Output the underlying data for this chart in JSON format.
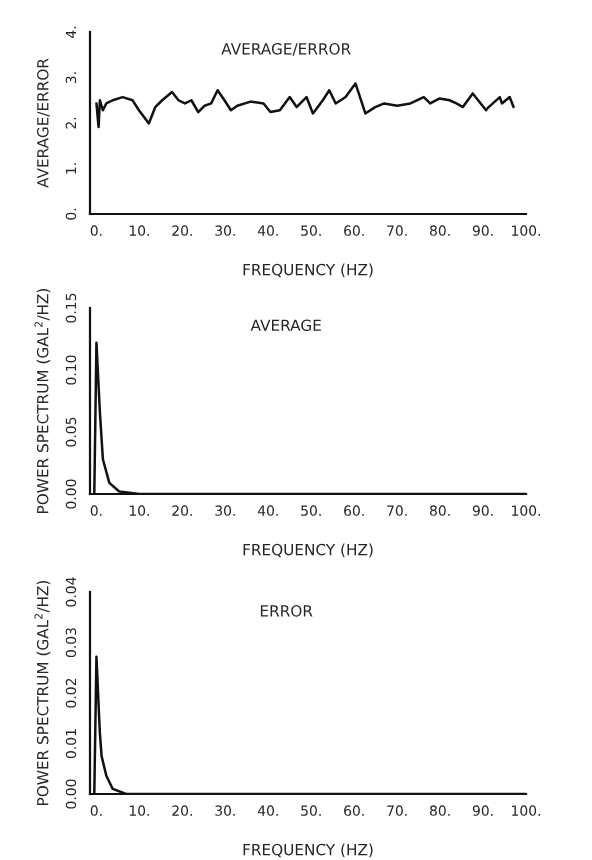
{
  "chart_data": [
    {
      "type": "line",
      "title": "AVERAGE/ERROR",
      "xlabel": "FREQUENCY (HZ)",
      "ylabel": "AVERAGE/ERROR",
      "xlim": [
        -1.5,
        100
      ],
      "ylim": [
        0,
        4
      ],
      "xticks": [
        {
          "value": 0,
          "label": "0."
        },
        {
          "value": 10,
          "label": "10."
        },
        {
          "value": 20,
          "label": "20."
        },
        {
          "value": 30,
          "label": "30."
        },
        {
          "value": 40,
          "label": "40."
        },
        {
          "value": 50,
          "label": "50."
        },
        {
          "value": 60,
          "label": "60."
        },
        {
          "value": 70,
          "label": "70."
        },
        {
          "value": 80,
          "label": "80."
        },
        {
          "value": 90,
          "label": "90."
        },
        {
          "value": 100,
          "label": "100."
        }
      ],
      "yticks": [
        {
          "value": 0,
          "label": "0."
        },
        {
          "value": 1,
          "label": "1."
        },
        {
          "value": 2,
          "label": "2."
        },
        {
          "value": 3,
          "label": "3."
        },
        {
          "value": 4,
          "label": "4."
        }
      ],
      "series": [
        {
          "color": "#111111",
          "x": [
            0,
            0.5,
            0.8,
            1.5,
            2.3,
            3.8,
            6.1,
            8.4,
            9.9,
            12.2,
            13.7,
            15.3,
            17.6,
            19.1,
            20.6,
            22.1,
            23.7,
            25.2,
            26.7,
            28.2,
            29.8,
            31.3,
            32.8,
            35.9,
            38.9,
            40.5,
            42.7,
            45.0,
            46.6,
            48.9,
            50.4,
            52.7,
            54.2,
            55.7,
            58.0,
            60.3,
            62.6,
            64.9,
            67.0,
            70.0,
            73.1,
            76.2,
            77.7,
            79.9,
            82.2,
            83.8,
            85.3,
            87.6,
            90.7,
            91.3,
            93.9,
            94.4,
            96.2,
            97.1
          ],
          "values": [
            2.43,
            1.91,
            2.5,
            2.28,
            2.43,
            2.5,
            2.57,
            2.5,
            2.28,
            1.99,
            2.35,
            2.5,
            2.68,
            2.5,
            2.43,
            2.5,
            2.24,
            2.38,
            2.43,
            2.72,
            2.5,
            2.28,
            2.38,
            2.47,
            2.43,
            2.24,
            2.28,
            2.57,
            2.35,
            2.57,
            2.21,
            2.5,
            2.72,
            2.43,
            2.57,
            2.87,
            2.21,
            2.35,
            2.43,
            2.38,
            2.43,
            2.57,
            2.43,
            2.54,
            2.5,
            2.43,
            2.35,
            2.65,
            2.28,
            2.35,
            2.57,
            2.43,
            2.57,
            2.35
          ]
        }
      ],
      "grid": false
    },
    {
      "type": "line",
      "title": "AVERAGE",
      "xlabel": "FREQUENCY (HZ)",
      "ylabel": "POWER SPECTRUM (GAL$^{2}$/HZ)",
      "xlim": [
        -1.5,
        100
      ],
      "ylim": [
        0,
        0.15
      ],
      "xticks": [
        {
          "value": 0,
          "label": "0."
        },
        {
          "value": 10,
          "label": "10."
        },
        {
          "value": 20,
          "label": "20."
        },
        {
          "value": 30,
          "label": "30."
        },
        {
          "value": 40,
          "label": "40."
        },
        {
          "value": 50,
          "label": "50."
        },
        {
          "value": 60,
          "label": "60."
        },
        {
          "value": 70,
          "label": "70."
        },
        {
          "value": 80,
          "label": "80."
        },
        {
          "value": 90,
          "label": "90."
        },
        {
          "value": 100,
          "label": "100."
        }
      ],
      "yticks": [
        {
          "value": 0,
          "label": "0.00"
        },
        {
          "value": 0.05,
          "label": "0.05"
        },
        {
          "value": 0.1,
          "label": "0.10"
        },
        {
          "value": 0.15,
          "label": "0.15"
        }
      ],
      "series": [
        {
          "color": "#111111",
          "x": [
            -0.5,
            0,
            0.8,
            1.5,
            3,
            5.3,
            10,
            100
          ],
          "values": [
            0.0,
            0.122,
            0.066,
            0.028,
            0.009,
            0.002,
            0.0,
            0.0
          ]
        }
      ],
      "grid": false
    },
    {
      "type": "line",
      "title": "ERROR",
      "xlabel": "FREQUENCY (HZ)",
      "ylabel": "POWER SPECTRUM (GAL$^{2}$/HZ)",
      "xlim": [
        -1.5,
        100
      ],
      "ylim": [
        0,
        0.04
      ],
      "xticks": [
        {
          "value": 0,
          "label": "0."
        },
        {
          "value": 10,
          "label": "10."
        },
        {
          "value": 20,
          "label": "20."
        },
        {
          "value": 30,
          "label": "30."
        },
        {
          "value": 40,
          "label": "40."
        },
        {
          "value": 50,
          "label": "50."
        },
        {
          "value": 60,
          "label": "60."
        },
        {
          "value": 70,
          "label": "70."
        },
        {
          "value": 80,
          "label": "80."
        },
        {
          "value": 90,
          "label": "90."
        },
        {
          "value": 100,
          "label": "100."
        }
      ],
      "yticks": [
        {
          "value": 0,
          "label": "0.00"
        },
        {
          "value": 0.01,
          "label": "0.01"
        },
        {
          "value": 0.02,
          "label": "0.02"
        },
        {
          "value": 0.03,
          "label": "0.03"
        },
        {
          "value": 0.04,
          "label": "0.04"
        }
      ],
      "series": [
        {
          "color": "#111111",
          "x": [
            -0.5,
            0,
            0.8,
            1.2,
            2.3,
            3.8,
            6.9,
            100
          ],
          "values": [
            0.0,
            0.0272,
            0.012,
            0.0075,
            0.0036,
            0.001,
            0.0,
            0.0
          ]
        }
      ],
      "grid": false
    }
  ]
}
